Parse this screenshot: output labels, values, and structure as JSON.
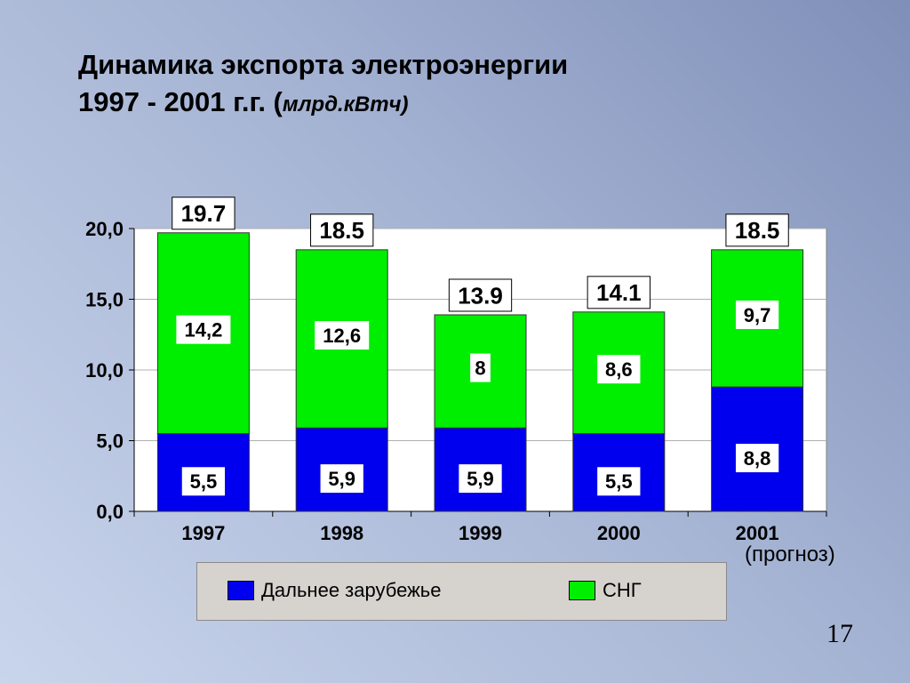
{
  "title": {
    "line1": "Динамика экспорта электроэнергии",
    "line2": "1997 - 2001 г.г. (",
    "unit": "млрд.кВтч)"
  },
  "colors": {
    "far_abroad": "#0000ee",
    "cis": "#00ee00",
    "plot_bg": "#ffffff",
    "grid": "#b0b0b0"
  },
  "chart_data": {
    "type": "bar",
    "stacked": true,
    "categories": [
      "1997",
      "1998",
      "1999",
      "2000",
      "2001"
    ],
    "series": [
      {
        "name": "Дальнее зарубежье",
        "color": "#0000ee",
        "values": [
          5.5,
          5.9,
          5.9,
          5.5,
          8.8
        ],
        "labels": [
          "5,5",
          "5,9",
          "5,9",
          "5,5",
          "8,8"
        ]
      },
      {
        "name": "СНГ",
        "color": "#00ee00",
        "values": [
          14.2,
          12.6,
          8.0,
          8.6,
          9.7
        ],
        "labels": [
          "14,2",
          "12,6",
          "8",
          "8,6",
          "9,7"
        ]
      }
    ],
    "totals": [
      19.7,
      18.5,
      13.9,
      14.1,
      18.5
    ],
    "total_labels": [
      "19.7",
      "18.5",
      "13.9",
      "14.1",
      "18.5"
    ],
    "ylim": [
      0,
      20
    ],
    "yticks": [
      0,
      5,
      10,
      15,
      20
    ],
    "ytick_labels": [
      "0,0",
      "5,0",
      "10,0",
      "15,0",
      "20,0"
    ],
    "grid": true,
    "legend": "bottom"
  },
  "note": "(прогноз)",
  "page_number": "17"
}
